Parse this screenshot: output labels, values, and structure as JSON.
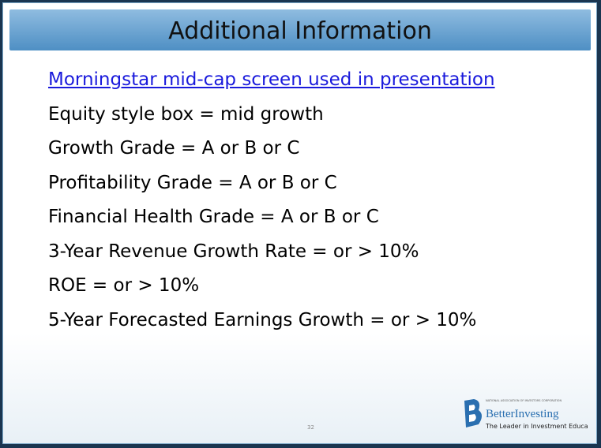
{
  "header": {
    "title": "Additional Information"
  },
  "link": "Morningstar mid-cap screen used in presentation",
  "items": [
    "Equity style box = mid growth",
    "Growth Grade = A or B or C",
    "Profitability Grade = A or B or C",
    "Financial Health Grade = A or B or C",
    "3-Year Revenue Growth Rate = or > 10%",
    "ROE = or > 10%",
    "5-Year Forecasted Earnings Growth = or > 10%"
  ],
  "footer": {
    "page_number": "32",
    "logo_tagline_top": "NATIONAL ASSOCIATION OF INVESTORS CORPORATION",
    "logo_name": "BetterInvesting",
    "logo_tagline": "The Leader in Investment Education"
  }
}
